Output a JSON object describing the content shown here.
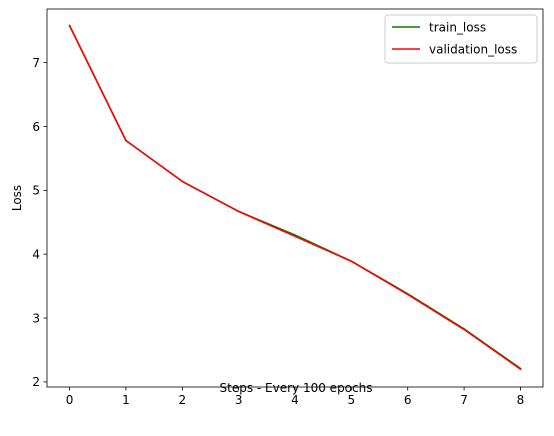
{
  "chart_data": {
    "type": "line",
    "title": "",
    "xlabel": "Steps - Every 100 epochs",
    "ylabel": "Loss",
    "xlim": [
      -0.4,
      8.4
    ],
    "ylim": [
      1.92,
      7.84
    ],
    "x_ticks": [
      0,
      1,
      2,
      3,
      4,
      5,
      6,
      7,
      8
    ],
    "y_ticks": [
      2,
      3,
      4,
      5,
      6,
      7
    ],
    "x_tick_labels": [
      "0",
      "1",
      "2",
      "3",
      "4",
      "5",
      "6",
      "7",
      "8"
    ],
    "y_tick_labels": [
      "2",
      "3",
      "4",
      "5",
      "6",
      "7"
    ],
    "x": [
      0,
      1,
      2,
      3,
      4,
      5,
      6,
      7,
      8
    ],
    "series": [
      {
        "name": "train_loss",
        "color": "#008000",
        "values": [
          7.58,
          5.78,
          5.14,
          4.67,
          4.3,
          3.89,
          3.38,
          2.83,
          2.21
        ]
      },
      {
        "name": "validation_loss",
        "color": "#ff0000",
        "values": [
          7.58,
          5.78,
          5.14,
          4.67,
          4.28,
          3.89,
          3.37,
          2.82,
          2.2
        ]
      }
    ],
    "legend": "top-right",
    "grid": false
  }
}
